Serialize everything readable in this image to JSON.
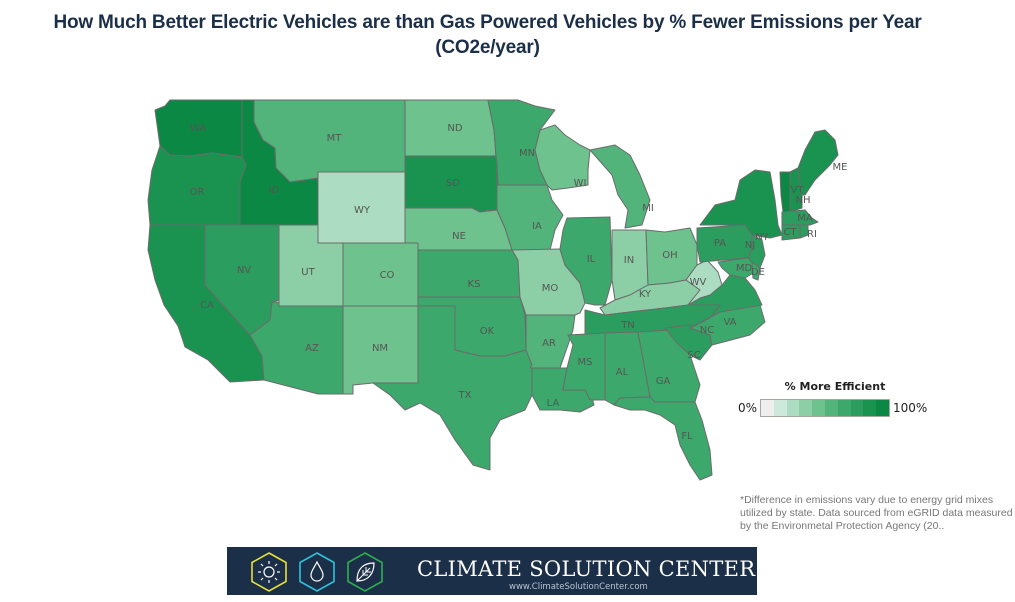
{
  "title": "How Much Better Electric Vehicles are than Gas Powered Vehicles by % Fewer Emissions per Year (CO2e/year)",
  "legend": {
    "title": "% More Efficient",
    "min_label": "0%",
    "max_label": "100%",
    "steps": [
      "#efefef",
      "#cde9db",
      "#acdcc1",
      "#8ccfa6",
      "#6dc28e",
      "#52b37b",
      "#3da86c",
      "#2b9d5e",
      "#1a9351",
      "#0b8843"
    ]
  },
  "states": [
    {
      "code": "WA",
      "level": 9
    },
    {
      "code": "OR",
      "level": 8
    },
    {
      "code": "CA",
      "level": 8
    },
    {
      "code": "ID",
      "level": 9
    },
    {
      "code": "NV",
      "level": 7
    },
    {
      "code": "MT",
      "level": 5
    },
    {
      "code": "WY",
      "level": 2
    },
    {
      "code": "UT",
      "level": 3
    },
    {
      "code": "CO",
      "level": 4
    },
    {
      "code": "AZ",
      "level": 6
    },
    {
      "code": "NM",
      "level": 4
    },
    {
      "code": "ND",
      "level": 4
    },
    {
      "code": "SD",
      "level": 8
    },
    {
      "code": "NE",
      "level": 4
    },
    {
      "code": "KS",
      "level": 6
    },
    {
      "code": "OK",
      "level": 6
    },
    {
      "code": "TX",
      "level": 6
    },
    {
      "code": "MN",
      "level": 6
    },
    {
      "code": "IA",
      "level": 5
    },
    {
      "code": "MO",
      "level": 3
    },
    {
      "code": "AR",
      "level": 5
    },
    {
      "code": "LA",
      "level": 6
    },
    {
      "code": "WI",
      "level": 4
    },
    {
      "code": "IL",
      "level": 6
    },
    {
      "code": "MI",
      "level": 5
    },
    {
      "code": "IN",
      "level": 3
    },
    {
      "code": "OH",
      "level": 4
    },
    {
      "code": "KY",
      "level": 3
    },
    {
      "code": "TN",
      "level": 7
    },
    {
      "code": "MS",
      "level": 6
    },
    {
      "code": "AL",
      "level": 6
    },
    {
      "code": "GA",
      "level": 6
    },
    {
      "code": "FL",
      "level": 6
    },
    {
      "code": "SC",
      "level": 7
    },
    {
      "code": "NC",
      "level": 6
    },
    {
      "code": "VA",
      "level": 7
    },
    {
      "code": "WV",
      "level": 2
    },
    {
      "code": "PA",
      "level": 7
    },
    {
      "code": "NY",
      "level": 8
    },
    {
      "code": "NJ",
      "level": 7
    },
    {
      "code": "MD",
      "level": 6
    },
    {
      "code": "DE",
      "level": 6
    },
    {
      "code": "VT",
      "level": 9
    },
    {
      "code": "NH",
      "level": 8
    },
    {
      "code": "ME",
      "level": 8
    },
    {
      "code": "MA",
      "level": 7
    },
    {
      "code": "CT",
      "level": 7
    },
    {
      "code": "RI",
      "level": 7
    }
  ],
  "footnote": "*Difference in emissions vary due to energy grid mixes utilized by state. Data sourced from eGRID data measured by the Environmetal Protection Agency (20..",
  "banner": {
    "title": "CLIMATE SOLUTION CENTER",
    "url": "www.ClimateSolutionCenter.com",
    "icons": [
      "sun-icon",
      "water-drop-icon",
      "leaf-icon"
    ],
    "icon_colors": [
      "#e8e03a",
      "#2fc3dc",
      "#2fae4f"
    ]
  }
}
